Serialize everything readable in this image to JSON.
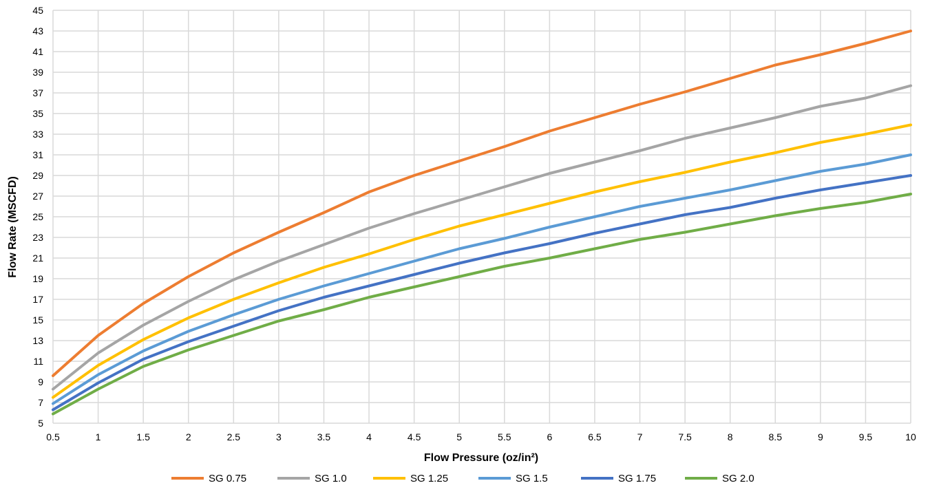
{
  "chart_data": {
    "type": "line",
    "title": "",
    "xlabel": "Flow Pressure (oz/in²)",
    "ylabel": "Flow Rate (MSCFD)",
    "x": [
      0.5,
      1,
      1.5,
      2,
      2.5,
      3,
      3.5,
      4,
      4.5,
      5,
      5.5,
      6,
      6.5,
      7,
      7.5,
      8,
      8.5,
      9,
      9.5,
      10
    ],
    "x_tick_labels": [
      "0.5",
      "1",
      "1.5",
      "2",
      "2.5",
      "3",
      "3.5",
      "4",
      "4.5",
      "5",
      "5.5",
      "6",
      "6.5",
      "7",
      "7.5",
      "8",
      "8.5",
      "9",
      "9.5",
      "10"
    ],
    "y_ticks": [
      5,
      7,
      9,
      11,
      13,
      15,
      17,
      19,
      21,
      23,
      25,
      27,
      29,
      31,
      33,
      35,
      37,
      39,
      41,
      43,
      45
    ],
    "xlim": [
      0.5,
      10
    ],
    "ylim": [
      5,
      45
    ],
    "grid": true,
    "legend_position": "bottom",
    "series": [
      {
        "name": "SG 0.75",
        "color": "#ED7D31",
        "values": [
          9.6,
          13.5,
          16.6,
          19.2,
          21.5,
          23.5,
          25.4,
          27.4,
          29.0,
          30.4,
          31.8,
          33.3,
          34.6,
          35.9,
          37.1,
          38.4,
          39.7,
          40.7,
          41.8,
          43.0
        ]
      },
      {
        "name": "SG 1.0",
        "color": "#A5A5A5",
        "values": [
          8.3,
          11.8,
          14.5,
          16.8,
          18.9,
          20.7,
          22.3,
          23.9,
          25.3,
          26.6,
          27.9,
          29.2,
          30.3,
          31.4,
          32.6,
          33.6,
          34.6,
          35.7,
          36.5,
          37.7
        ]
      },
      {
        "name": "SG 1.25",
        "color": "#FFC000",
        "values": [
          7.5,
          10.6,
          13.1,
          15.2,
          17.0,
          18.6,
          20.1,
          21.4,
          22.8,
          24.1,
          25.2,
          26.3,
          27.4,
          28.4,
          29.3,
          30.3,
          31.2,
          32.2,
          33.0,
          33.9
        ]
      },
      {
        "name": "SG 1.5",
        "color": "#5B9BD5",
        "values": [
          6.9,
          9.7,
          12.0,
          13.9,
          15.5,
          17.0,
          18.3,
          19.5,
          20.7,
          21.9,
          22.9,
          24.0,
          25.0,
          26.0,
          26.8,
          27.6,
          28.5,
          29.4,
          30.1,
          31.0
        ]
      },
      {
        "name": "SG 1.75",
        "color": "#4472C4",
        "values": [
          6.3,
          8.9,
          11.2,
          12.9,
          14.4,
          15.9,
          17.2,
          18.3,
          19.4,
          20.5,
          21.5,
          22.4,
          23.4,
          24.3,
          25.2,
          25.9,
          26.8,
          27.6,
          28.3,
          29.0
        ]
      },
      {
        "name": "SG 2.0",
        "color": "#70AD47",
        "values": [
          5.9,
          8.3,
          10.5,
          12.1,
          13.5,
          14.9,
          16.0,
          17.2,
          18.2,
          19.2,
          20.2,
          21.0,
          21.9,
          22.8,
          23.5,
          24.3,
          25.1,
          25.8,
          26.4,
          27.2
        ]
      }
    ]
  }
}
